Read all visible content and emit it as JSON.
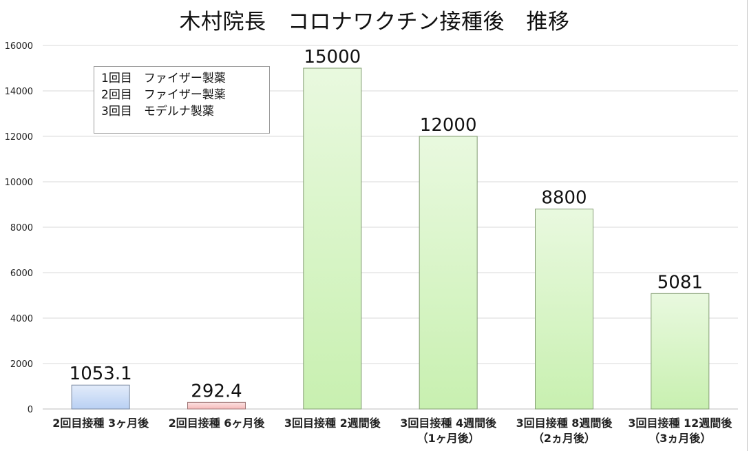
{
  "chart_data": {
    "type": "bar",
    "title": "木村院長　コロナワクチン接種後　推移",
    "categories": [
      [
        "2回目接種 3ヶ月後"
      ],
      [
        "2回目接種 6ヶ月後"
      ],
      [
        "3回目接種 2週間後"
      ],
      [
        "3回目接種 4週間後",
        "（1ヶ月後）"
      ],
      [
        "3回目接種 8週間後",
        "（2ヵ月後）"
      ],
      [
        "3回目接種 12週間後",
        "（3ヵ月後）"
      ]
    ],
    "values": [
      1053.1,
      292.4,
      15000,
      12000,
      8800,
      5081
    ],
    "value_labels": [
      "1053.1",
      "292.4",
      "15000",
      "12000",
      "8800",
      "5081"
    ],
    "colors": [
      "#b9d0f3",
      "#f6b9b9",
      "#c8f0b0",
      "#c8f0b0",
      "#c8f0b0",
      "#c8f0b0"
    ],
    "yticks": [
      "0",
      "2000",
      "4000",
      "6000",
      "8000",
      "10000",
      "12000",
      "14000",
      "16000"
    ],
    "ylim": [
      0,
      16000
    ],
    "grid": true,
    "annotations": [
      "1回目　ファイザー製薬",
      "2回目　ファイザー製薬",
      "3回目　モデルナ製薬"
    ]
  }
}
